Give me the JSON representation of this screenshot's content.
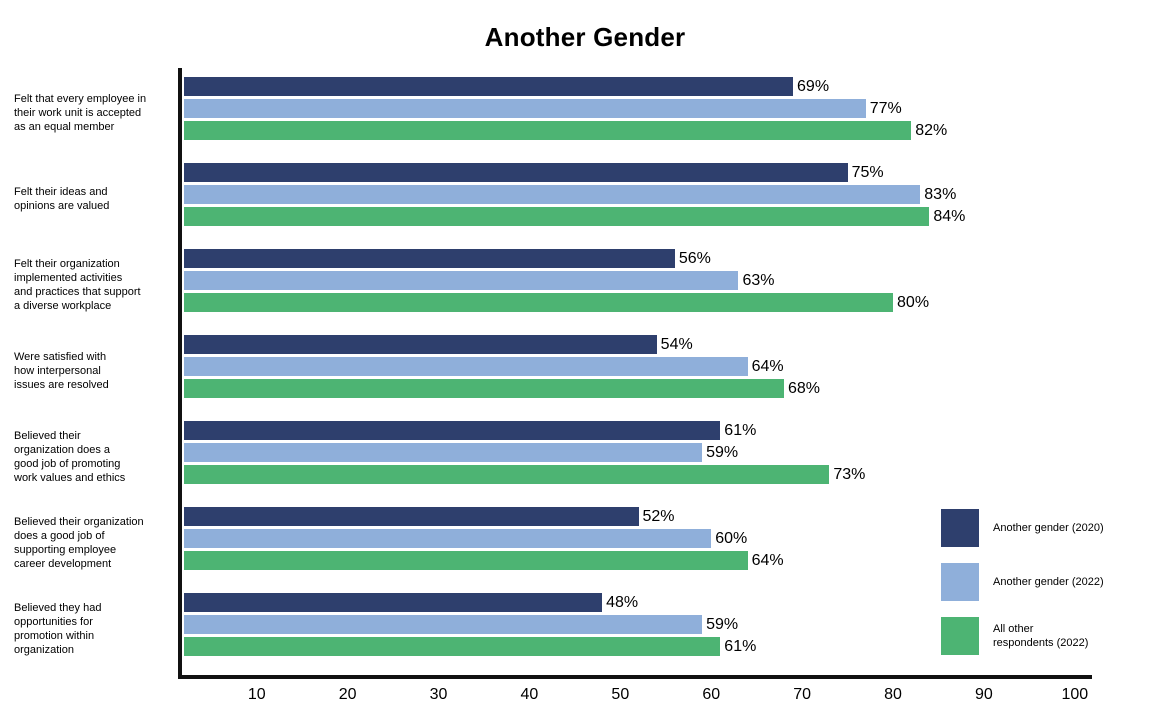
{
  "title": "Another Gender",
  "chart_data": {
    "type": "bar",
    "orientation": "horizontal",
    "title": "Another Gender",
    "xlabel": "",
    "ylabel": "",
    "xlim": [
      2,
      102
    ],
    "x_ticks": [
      10,
      20,
      30,
      40,
      50,
      60,
      70,
      80,
      90,
      100
    ],
    "value_suffix": "%",
    "grid": false,
    "legend_position": "bottom-right",
    "categories": [
      "Felt that every employee in\ntheir work unit is accepted\nas an equal member",
      "Felt their ideas and\nopinions are valued",
      "Felt their organization\nimplemented activities\nand practices that support\na diverse workplace",
      "Were satisfied with\nhow interpersonal\nissues are resolved",
      "Believed their\norganization does a\ngood job of promoting\nwork values and ethics",
      "Believed their organization\ndoes a good job of\nsupporting employee\ncareer development",
      "Believed they had\nopportunities for\npromotion within\norganization"
    ],
    "series": [
      {
        "name": "Another gender (2020)",
        "color": "#2e3f6d",
        "values": [
          69,
          75,
          56,
          54,
          61,
          52,
          48
        ]
      },
      {
        "name": "Another gender (2022)",
        "color": "#8fafda",
        "values": [
          77,
          83,
          63,
          64,
          59,
          60,
          59
        ]
      },
      {
        "name": "All other respondents (2022)",
        "color": "#4db473",
        "values": [
          82,
          84,
          80,
          68,
          73,
          64,
          61
        ]
      }
    ]
  },
  "legend": {
    "items": [
      {
        "label": "Another gender (2020)",
        "color": "#2e3f6d"
      },
      {
        "label": "Another gender (2022)",
        "color": "#8fafda"
      },
      {
        "label": "All other\nrespondents (2022)",
        "color": "#4db473"
      }
    ]
  }
}
